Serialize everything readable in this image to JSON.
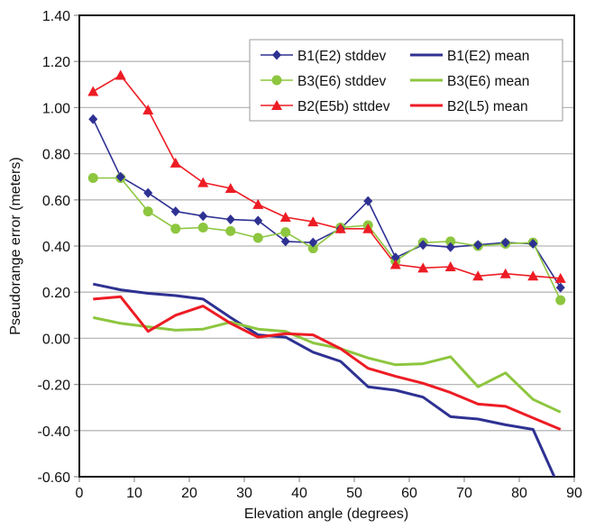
{
  "chart_data": {
    "type": "line",
    "title": "",
    "xlabel": "Elevation angle (degrees)",
    "ylabel": "Pseudorange error (meters)",
    "xlim": [
      0,
      90
    ],
    "ylim": [
      -0.6,
      1.4
    ],
    "xticks": [
      0,
      10,
      20,
      30,
      40,
      50,
      60,
      70,
      80,
      90
    ],
    "xtick_labels": [
      "0",
      "10",
      "20",
      "30",
      "40",
      "50",
      "60",
      "70",
      "80",
      "90"
    ],
    "yticks": [
      1.4,
      1.2,
      1.0,
      0.8,
      0.6,
      0.4,
      0.2,
      0.0,
      -0.2,
      -0.4,
      -0.6
    ],
    "ytick_labels": [
      "1.40",
      "1.20",
      "1.00",
      "0.80",
      "0.60",
      "0.40",
      "0.20",
      "0.00",
      "-0.20",
      "-0.40",
      "-0.60"
    ],
    "grid": "horizontal",
    "legend_position": "top-right",
    "x": [
      2.5,
      7.5,
      12.5,
      17.5,
      22.5,
      27.5,
      32.5,
      37.5,
      42.5,
      47.5,
      52.5,
      57.5,
      62.5,
      67.5,
      72.5,
      77.5,
      82.5,
      87.5
    ],
    "series": [
      {
        "name": "B1(E2) stddev",
        "color": "#2e3192",
        "marker": "diamond",
        "values": [
          0.95,
          0.7,
          0.63,
          0.55,
          0.53,
          0.515,
          0.51,
          0.42,
          0.415,
          0.475,
          0.595,
          0.35,
          0.405,
          0.395,
          0.405,
          0.415,
          0.41,
          0.22
        ]
      },
      {
        "name": "B3(E6) stddev",
        "color": "#8dc63f",
        "marker": "circle",
        "values": [
          0.695,
          0.695,
          0.55,
          0.475,
          0.48,
          0.465,
          0.435,
          0.46,
          0.39,
          0.48,
          0.49,
          0.335,
          0.415,
          0.42,
          0.4,
          0.41,
          0.415,
          0.165
        ]
      },
      {
        "name": "B2(E5b) sttdev",
        "color": "#ed1c24",
        "marker": "triangle",
        "values": [
          1.07,
          1.14,
          0.99,
          0.76,
          0.675,
          0.65,
          0.58,
          0.525,
          0.505,
          0.475,
          0.475,
          0.32,
          0.305,
          0.31,
          0.27,
          0.28,
          0.27,
          0.26
        ]
      },
      {
        "name": "B1(E2) mean",
        "color": "#2e3192",
        "marker": "none",
        "values": [
          0.235,
          0.21,
          0.195,
          0.185,
          0.17,
          0.09,
          0.015,
          0.005,
          -0.06,
          -0.1,
          -0.21,
          -0.225,
          -0.255,
          -0.34,
          -0.35,
          -0.375,
          -0.395,
          -0.66
        ]
      },
      {
        "name": "B3(E6) mean",
        "color": "#8dc63f",
        "marker": "none",
        "values": [
          0.09,
          0.065,
          0.05,
          0.035,
          0.04,
          0.07,
          0.04,
          0.03,
          -0.02,
          -0.045,
          -0.085,
          -0.115,
          -0.11,
          -0.08,
          -0.21,
          -0.15,
          -0.265,
          -0.32
        ]
      },
      {
        "name": "B2(L5) mean",
        "color": "#ed1c24",
        "marker": "none",
        "values": [
          0.17,
          0.18,
          0.03,
          0.1,
          0.14,
          0.065,
          0.005,
          0.02,
          0.015,
          -0.045,
          -0.13,
          -0.165,
          -0.195,
          -0.235,
          -0.285,
          -0.295,
          -0.345,
          -0.395
        ]
      }
    ],
    "legend": [
      {
        "label": "B1(E2) stddev",
        "series": 0
      },
      {
        "label": "B1(E2) mean",
        "series": 3
      },
      {
        "label": "B3(E6) stddev",
        "series": 1
      },
      {
        "label": "B3(E6) mean",
        "series": 4
      },
      {
        "label": "B2(E5b) sttdev",
        "series": 2
      },
      {
        "label": "B2(L5) mean",
        "series": 5
      }
    ]
  }
}
